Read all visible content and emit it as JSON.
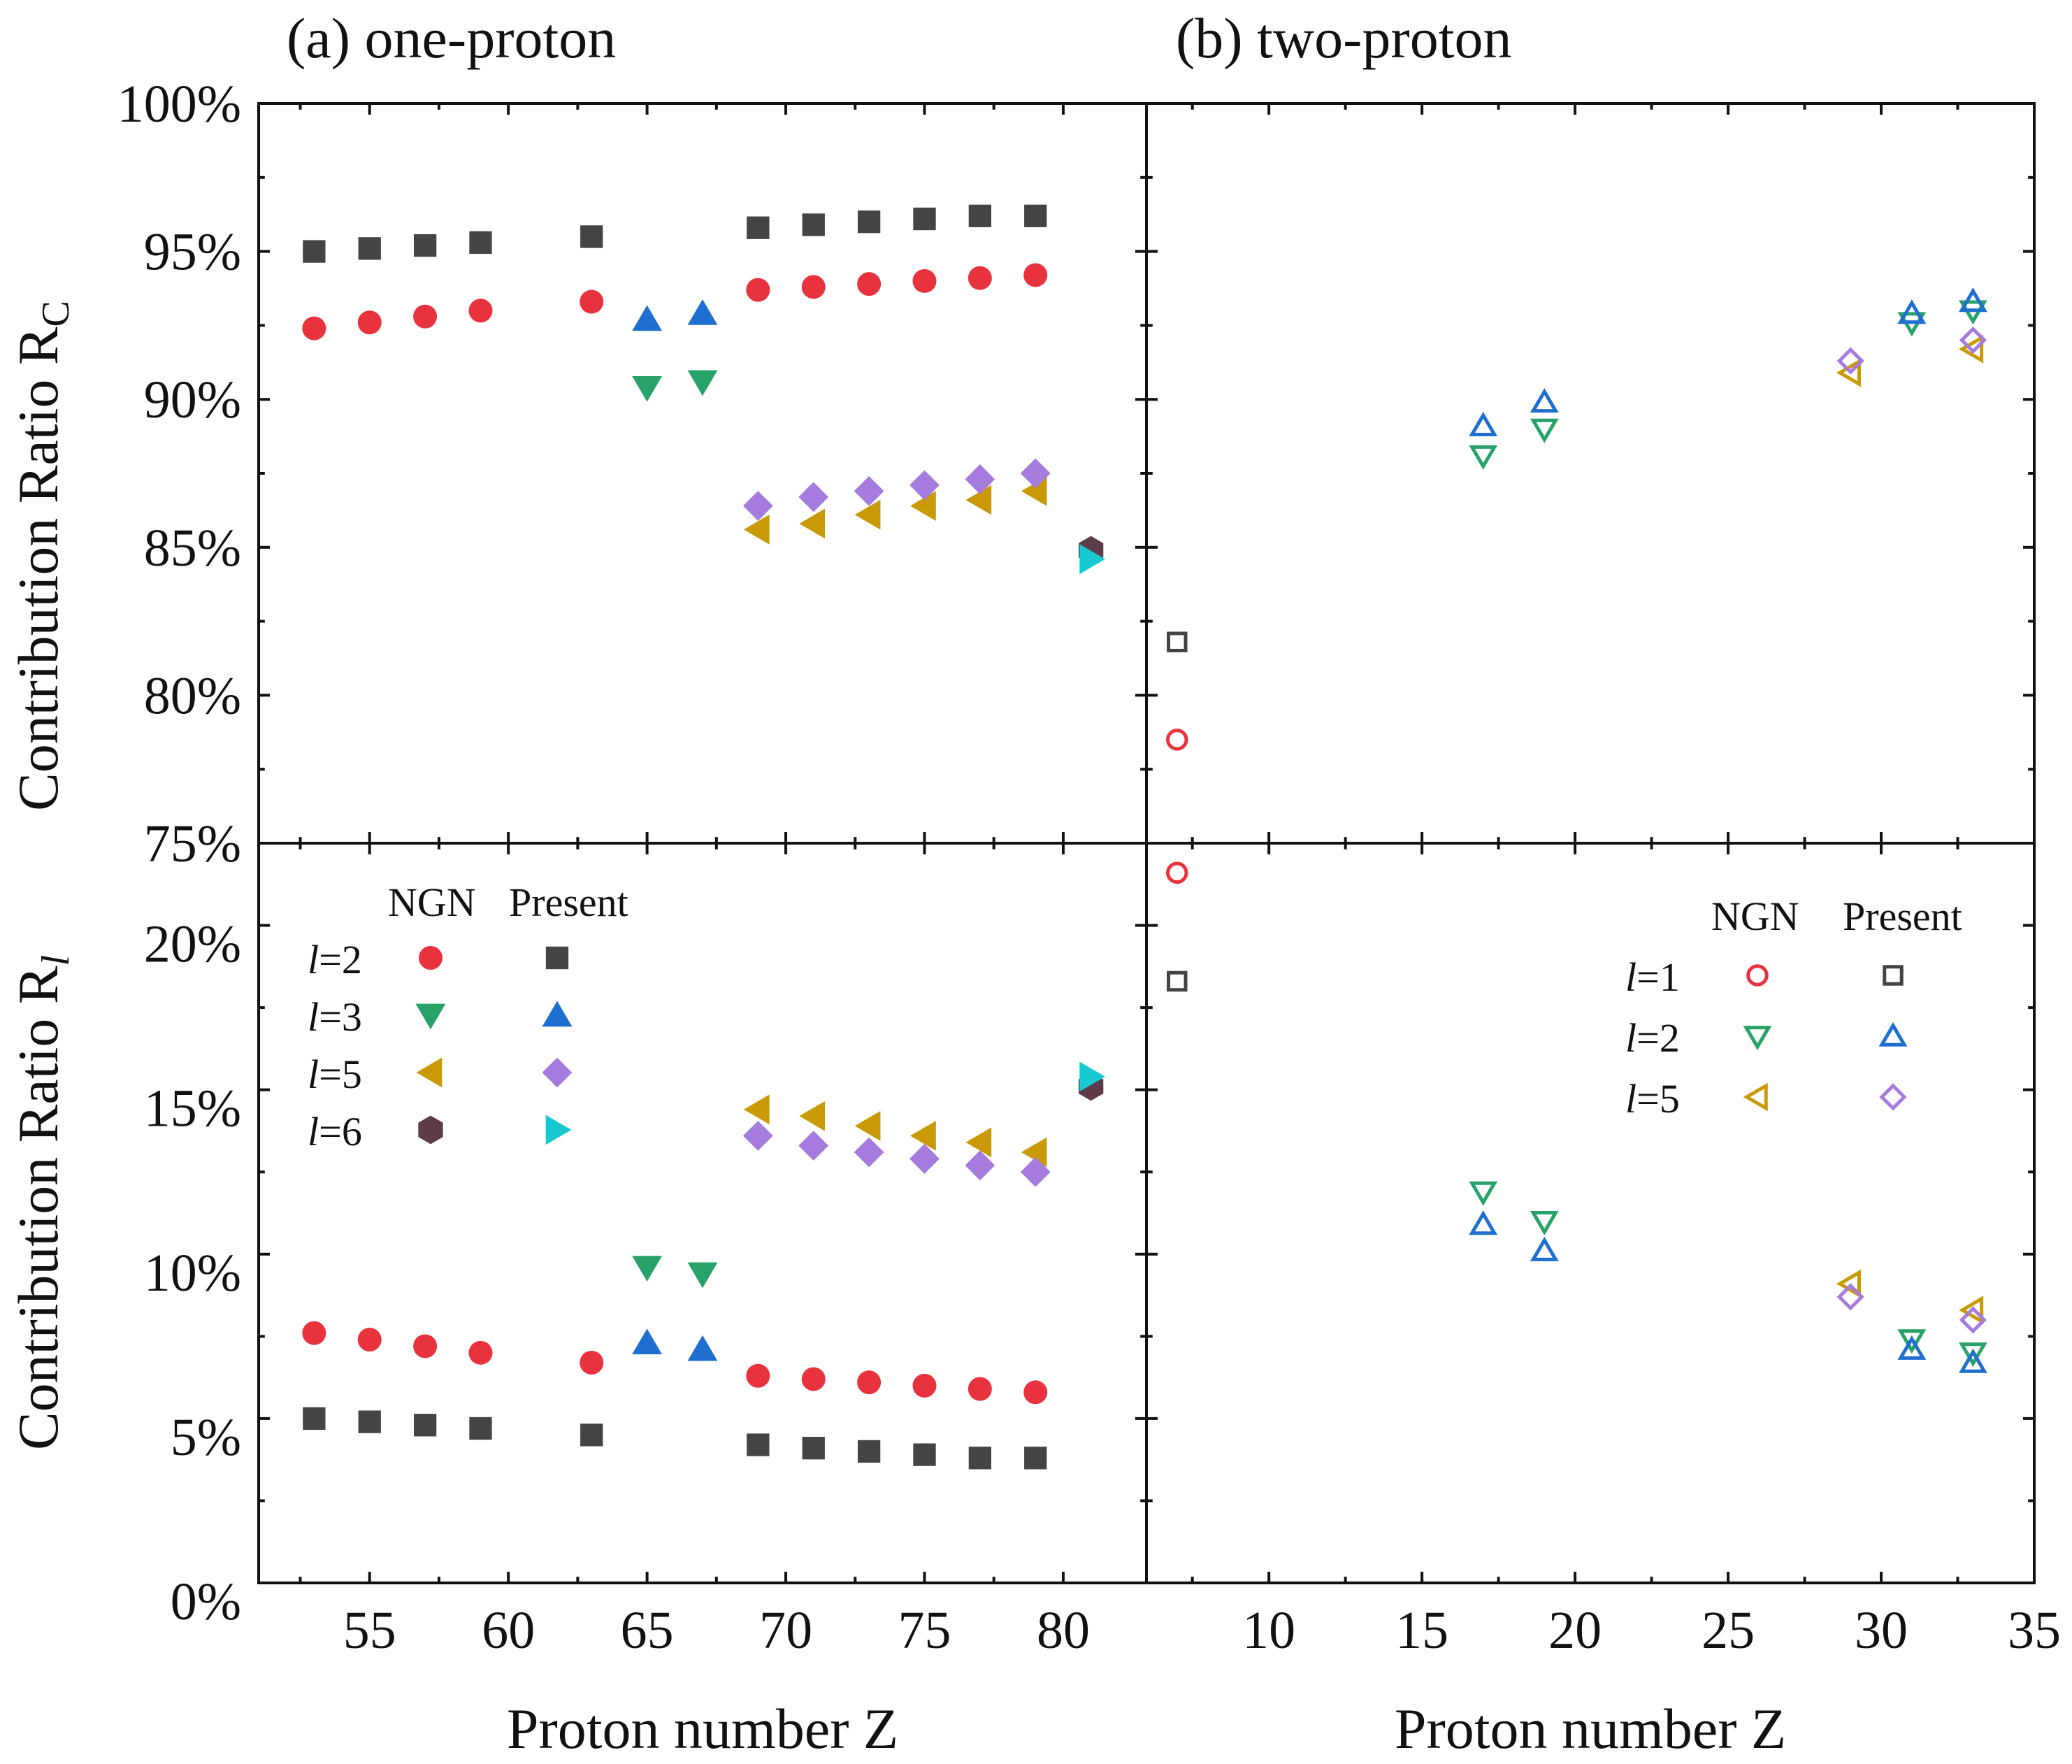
{
  "colors": {
    "l1_ngn": "#e8333f",
    "l1_present": "#444444",
    "l2_ngn": "#e8333f",
    "l2_present": "#444444",
    "l3_ngn": "#27a36a",
    "l3_present": "#1f6fd1",
    "l5_ngn": "#c99a06",
    "l5_present": "#a57bde",
    "l6_ngn": "#5e3b49",
    "l6_present": "#18c8d0"
  },
  "shared": {
    "rc_label_main": "Contribution Ratio R",
    "rc_label_sub": "C",
    "rl_label_main": "Contribution Ratio R",
    "rl_label_sub": "l",
    "xlabel": "Proton number Z"
  },
  "panels": {
    "a": {
      "title": "(a) one-proton",
      "x_ticks": [
        "55",
        "60",
        "65",
        "70",
        "75",
        "80"
      ],
      "legend": {
        "header_ngn": "NGN",
        "header_present": "Present",
        "rows": [
          {
            "l": "l",
            "eq": "=2"
          },
          {
            "l": "l",
            "eq": "=3"
          },
          {
            "l": "l",
            "eq": "=5"
          },
          {
            "l": "l",
            "eq": "=6"
          }
        ]
      }
    },
    "b": {
      "title": "(b) two-proton",
      "x_ticks": [
        "10",
        "15",
        "20",
        "25",
        "30",
        "35"
      ],
      "legend": {
        "header_ngn": "NGN",
        "header_present": "Present",
        "rows": [
          {
            "l": "l",
            "eq": "=1"
          },
          {
            "l": "l",
            "eq": "=2"
          },
          {
            "l": "l",
            "eq": "=5"
          }
        ]
      }
    }
  },
  "y_ticks_top": [
    "75%",
    "80%",
    "85%",
    "90%",
    "95%",
    "100%"
  ],
  "y_ticks_bottom": [
    "0%",
    "5%",
    "10%",
    "15%",
    "20%"
  ],
  "chart_data": [
    {
      "type": "scatter",
      "title": "(a) one-proton",
      "xlabel": "",
      "ylabel": "Contribution Ratio R_C",
      "xlim": [
        51,
        83
      ],
      "ylim": [
        75,
        100
      ],
      "x_ticks": [
        55,
        60,
        65,
        70,
        75,
        80
      ],
      "y_ticks": [
        75,
        80,
        85,
        90,
        95,
        100
      ],
      "series": [
        {
          "name": "l=2 NGN",
          "marker": "circle",
          "filled": true,
          "color_key": "l2_ngn",
          "x": [
            53,
            55,
            57,
            59,
            63,
            69,
            71,
            73,
            75,
            77,
            79
          ],
          "y": [
            92.4,
            92.6,
            92.8,
            93.0,
            93.3,
            93.7,
            93.8,
            93.9,
            94.0,
            94.1,
            94.2
          ]
        },
        {
          "name": "l=2 Present",
          "marker": "square",
          "filled": true,
          "color_key": "l2_present",
          "x": [
            53,
            55,
            57,
            59,
            63,
            69,
            71,
            73,
            75,
            77,
            79
          ],
          "y": [
            95.0,
            95.1,
            95.2,
            95.3,
            95.5,
            95.8,
            95.9,
            96.0,
            96.1,
            96.2,
            96.2
          ]
        },
        {
          "name": "l=3 NGN",
          "marker": "triangle-down",
          "filled": true,
          "color_key": "l3_ngn",
          "x": [
            65,
            67
          ],
          "y": [
            90.4,
            90.6
          ]
        },
        {
          "name": "l=3 Present",
          "marker": "triangle-up",
          "filled": true,
          "color_key": "l3_present",
          "x": [
            65,
            67
          ],
          "y": [
            92.7,
            92.9
          ]
        },
        {
          "name": "l=5 NGN",
          "marker": "triangle-left",
          "filled": true,
          "color_key": "l5_ngn",
          "x": [
            69,
            71,
            73,
            75,
            77,
            79
          ],
          "y": [
            85.6,
            85.8,
            86.1,
            86.4,
            86.6,
            86.9
          ]
        },
        {
          "name": "l=5 Present",
          "marker": "diamond",
          "filled": true,
          "color_key": "l5_present",
          "x": [
            69,
            71,
            73,
            75,
            77,
            79
          ],
          "y": [
            86.4,
            86.7,
            86.9,
            87.1,
            87.3,
            87.5
          ]
        },
        {
          "name": "l=6 NGN",
          "marker": "hexagon",
          "filled": true,
          "color_key": "l6_ngn",
          "x": [
            81
          ],
          "y": [
            84.9
          ]
        },
        {
          "name": "l=6 Present",
          "marker": "triangle-right",
          "filled": true,
          "color_key": "l6_present",
          "x": [
            81
          ],
          "y": [
            84.6
          ]
        }
      ]
    },
    {
      "type": "scatter",
      "title": "(b) two-proton",
      "xlabel": "",
      "ylabel": "",
      "xlim": [
        6,
        35
      ],
      "ylim": [
        75,
        100
      ],
      "x_ticks": [
        10,
        15,
        20,
        25,
        30,
        35
      ],
      "y_ticks": [
        75,
        80,
        85,
        90,
        95,
        100
      ],
      "series": [
        {
          "name": "l=1 NGN",
          "marker": "circle",
          "filled": false,
          "color_key": "l1_ngn",
          "x": [
            7
          ],
          "y": [
            78.5
          ]
        },
        {
          "name": "l=1 Present",
          "marker": "square",
          "filled": false,
          "color_key": "l1_present",
          "x": [
            7
          ],
          "y": [
            81.8
          ]
        },
        {
          "name": "l=2 NGN",
          "marker": "triangle-down",
          "filled": false,
          "color_key": "l3_ngn",
          "x": [
            17,
            19,
            31,
            33
          ],
          "y": [
            88.1,
            89.0,
            92.6,
            93.0
          ]
        },
        {
          "name": "l=2 Present",
          "marker": "triangle-up",
          "filled": false,
          "color_key": "l3_present",
          "x": [
            17,
            19,
            31,
            33
          ],
          "y": [
            89.1,
            89.9,
            92.9,
            93.3
          ]
        },
        {
          "name": "l=5 NGN",
          "marker": "triangle-left",
          "filled": false,
          "color_key": "l5_ngn",
          "x": [
            29,
            33
          ],
          "y": [
            90.9,
            91.7
          ]
        },
        {
          "name": "l=5 Present",
          "marker": "diamond",
          "filled": false,
          "color_key": "l5_present",
          "x": [
            29,
            33
          ],
          "y": [
            91.3,
            92.0
          ]
        }
      ]
    },
    {
      "type": "scatter",
      "title": "",
      "xlabel": "Proton number Z",
      "ylabel": "Contribution Ratio R_l",
      "xlim": [
        51,
        83
      ],
      "ylim": [
        0,
        22.5
      ],
      "x_ticks": [
        55,
        60,
        65,
        70,
        75,
        80
      ],
      "y_ticks": [
        0,
        5,
        10,
        15,
        20
      ],
      "series": [
        {
          "name": "l=2 NGN",
          "marker": "circle",
          "filled": true,
          "color_key": "l2_ngn",
          "x": [
            53,
            55,
            57,
            59,
            63,
            69,
            71,
            73,
            75,
            77,
            79
          ],
          "y": [
            7.6,
            7.4,
            7.2,
            7.0,
            6.7,
            6.3,
            6.2,
            6.1,
            6.0,
            5.9,
            5.8
          ]
        },
        {
          "name": "l=2 Present",
          "marker": "square",
          "filled": true,
          "color_key": "l2_present",
          "x": [
            53,
            55,
            57,
            59,
            63,
            69,
            71,
            73,
            75,
            77,
            79
          ],
          "y": [
            5.0,
            4.9,
            4.8,
            4.7,
            4.5,
            4.2,
            4.1,
            4.0,
            3.9,
            3.8,
            3.8
          ]
        },
        {
          "name": "l=3 NGN",
          "marker": "triangle-down",
          "filled": true,
          "color_key": "l3_ngn",
          "x": [
            65,
            67
          ],
          "y": [
            9.6,
            9.4
          ]
        },
        {
          "name": "l=3 Present",
          "marker": "triangle-up",
          "filled": true,
          "color_key": "l3_present",
          "x": [
            65,
            67
          ],
          "y": [
            7.3,
            7.1
          ]
        },
        {
          "name": "l=5 NGN",
          "marker": "triangle-left",
          "filled": true,
          "color_key": "l5_ngn",
          "x": [
            69,
            71,
            73,
            75,
            77,
            79
          ],
          "y": [
            14.4,
            14.2,
            13.9,
            13.6,
            13.4,
            13.1
          ]
        },
        {
          "name": "l=5 Present",
          "marker": "diamond",
          "filled": true,
          "color_key": "l5_present",
          "x": [
            69,
            71,
            73,
            75,
            77,
            79
          ],
          "y": [
            13.6,
            13.3,
            13.1,
            12.9,
            12.7,
            12.5
          ]
        },
        {
          "name": "l=6 NGN",
          "marker": "hexagon",
          "filled": true,
          "color_key": "l6_ngn",
          "x": [
            81
          ],
          "y": [
            15.1
          ]
        },
        {
          "name": "l=6 Present",
          "marker": "triangle-right",
          "filled": true,
          "color_key": "l6_present",
          "x": [
            81
          ],
          "y": [
            15.4
          ]
        }
      ]
    },
    {
      "type": "scatter",
      "title": "",
      "xlabel": "Proton number Z",
      "ylabel": "",
      "xlim": [
        6,
        35
      ],
      "ylim": [
        0,
        22.5
      ],
      "x_ticks": [
        10,
        15,
        20,
        25,
        30,
        35
      ],
      "y_ticks": [
        0,
        5,
        10,
        15,
        20
      ],
      "series": [
        {
          "name": "l=1 NGN",
          "marker": "circle",
          "filled": false,
          "color_key": "l1_ngn",
          "x": [
            7
          ],
          "y": [
            21.6
          ]
        },
        {
          "name": "l=1 Present",
          "marker": "square",
          "filled": false,
          "color_key": "l1_present",
          "x": [
            7
          ],
          "y": [
            18.3
          ]
        },
        {
          "name": "l=2 NGN",
          "marker": "triangle-down",
          "filled": false,
          "color_key": "l3_ngn",
          "x": [
            17,
            19,
            31,
            33
          ],
          "y": [
            11.9,
            11.0,
            7.4,
            7.0
          ]
        },
        {
          "name": "l=2 Present",
          "marker": "triangle-up",
          "filled": false,
          "color_key": "l3_present",
          "x": [
            17,
            19,
            31,
            33
          ],
          "y": [
            10.9,
            10.1,
            7.1,
            6.7
          ]
        },
        {
          "name": "l=5 NGN",
          "marker": "triangle-left",
          "filled": false,
          "color_key": "l5_ngn",
          "x": [
            29,
            33
          ],
          "y": [
            9.1,
            8.3
          ]
        },
        {
          "name": "l=5 Present",
          "marker": "diamond",
          "filled": false,
          "color_key": "l5_present",
          "x": [
            29,
            33
          ],
          "y": [
            8.7,
            8.0
          ]
        }
      ]
    }
  ]
}
